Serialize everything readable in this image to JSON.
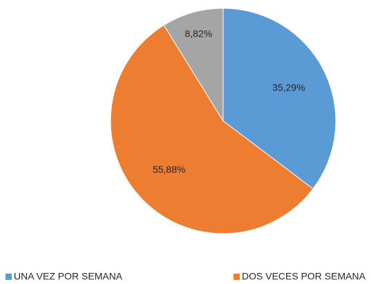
{
  "chart_data": {
    "type": "pie",
    "categories": [
      "UNA VEZ POR SEMANA",
      "DOS VECES POR SEMANA",
      null
    ],
    "values": [
      35.29,
      55.88,
      8.82
    ],
    "value_labels": [
      "35,29%",
      "55,88%",
      "8,82%"
    ],
    "colors": [
      "#5b9bd5",
      "#ed7d31",
      "#a5a5a5"
    ],
    "legend": "bottom"
  }
}
